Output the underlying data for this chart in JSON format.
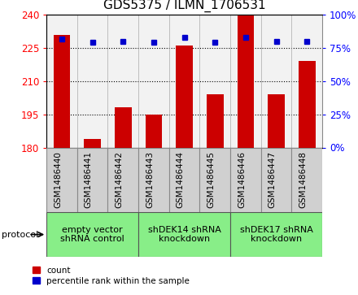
{
  "title": "GDS5375 / ILMN_1706531",
  "samples": [
    "GSM1486440",
    "GSM1486441",
    "GSM1486442",
    "GSM1486443",
    "GSM1486444",
    "GSM1486445",
    "GSM1486446",
    "GSM1486447",
    "GSM1486448"
  ],
  "counts": [
    231,
    184,
    198,
    195,
    226,
    204,
    240,
    204,
    219
  ],
  "percentiles": [
    82,
    79,
    80,
    79,
    83,
    79,
    83,
    80,
    80
  ],
  "ylim_left": [
    180,
    240
  ],
  "ylim_right": [
    0,
    100
  ],
  "yticks_left": [
    180,
    195,
    210,
    225,
    240
  ],
  "yticks_right": [
    0,
    25,
    50,
    75,
    100
  ],
  "bar_color": "#cc0000",
  "marker_color": "#0000cc",
  "bar_width": 0.55,
  "groups": [
    {
      "label": "empty vector\nshRNA control",
      "start": 0,
      "end": 3
    },
    {
      "label": "shDEK14 shRNA\nknockdown",
      "start": 3,
      "end": 6
    },
    {
      "label": "shDEK17 shRNA\nknockdown",
      "start": 6,
      "end": 9
    }
  ],
  "group_color": "#88ee88",
  "sample_box_color": "#d0d0d0",
  "protocol_label": "protocol",
  "legend_count_label": "count",
  "legend_percentile_label": "percentile rank within the sample",
  "title_fontsize": 11,
  "label_fontsize": 8,
  "tick_fontsize": 8.5,
  "sample_fontsize": 7.5,
  "group_fontsize": 8
}
